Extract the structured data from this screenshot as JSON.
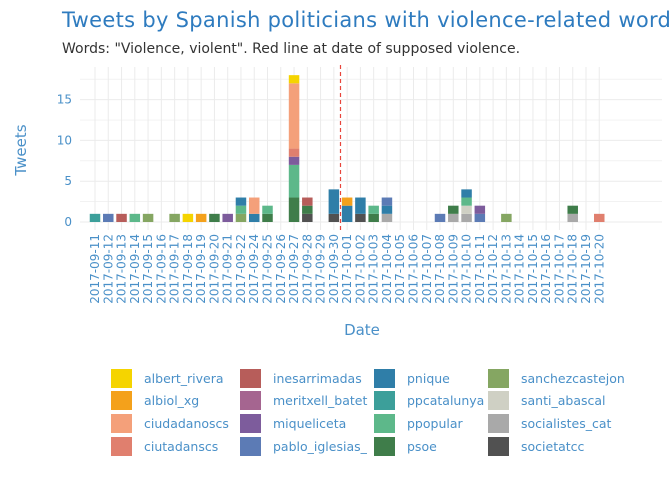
{
  "chart_data": {
    "type": "bar",
    "stacked": true,
    "title": "Tweets by Spanish politicians with violence-related words",
    "subtitle": "Words: \"Violence, violent\". Red line at date of supposed violence.",
    "xlabel": "Date",
    "ylabel": "Tweets",
    "ylim": [
      0,
      19
    ],
    "yticks": [
      0,
      5,
      10,
      15
    ],
    "grid": true,
    "legend_position": "bottom",
    "reference_line": {
      "date": "2017-10-01",
      "color": "#e8453c",
      "style": "dashed"
    },
    "categories": [
      "2017-09-11",
      "2017-09-12",
      "2017-09-13",
      "2017-09-14",
      "2017-09-15",
      "2017-09-16",
      "2017-09-17",
      "2017-09-18",
      "2017-09-19",
      "2017-09-20",
      "2017-09-21",
      "2017-09-22",
      "2017-09-24",
      "2017-09-25",
      "2017-09-26",
      "2017-09-27",
      "2017-09-28",
      "2017-09-29",
      "2017-09-30",
      "2017-10-01",
      "2017-10-02",
      "2017-10-03",
      "2017-10-04",
      "2017-10-05",
      "2017-10-06",
      "2017-10-07",
      "2017-10-08",
      "2017-10-09",
      "2017-10-10",
      "2017-10-11",
      "2017-10-12",
      "2017-10-13",
      "2017-10-14",
      "2017-10-15",
      "2017-10-16",
      "2017-10-17",
      "2017-10-18",
      "2017-10-19",
      "2017-10-20"
    ],
    "x_ticks_shown": [
      "2017-09-11",
      "2017-09-12",
      "2017-09-13",
      "2017-09-14",
      "2017-09-15",
      "2017-09-16",
      "2017-09-17",
      "2017-09-18",
      "2017-09-19",
      "2017-09-20",
      "2017-09-21",
      "2017-09-22",
      "2017-09-24",
      "2017-09-25",
      "2017-09-26",
      "2017-09-27",
      "2017-09-28",
      "2017-09-29",
      "2017-09-30",
      "2017-10-01",
      "2017-10-02",
      "2017-10-03",
      "2017-10-04",
      "2017-10-05",
      "2017-10-06",
      "2017-10-07",
      "2017-10-08",
      "2017-10-09",
      "2017-10-10",
      "2017-10-11",
      "2017-10-12",
      "2017-10-13",
      "2017-10-14",
      "2017-10-15",
      "2017-10-16",
      "2017-10-17",
      "2017-10-18",
      "2017-10-19",
      "2017-10-20"
    ],
    "x_ticks": [
      "2017-09-11",
      "2017-09-12",
      "2017-09-13",
      "2017-09-14",
      "2017-09-15",
      "2017-09-16",
      "2017-09-18",
      "2017-09-19",
      "2017-09-20",
      "2017-09-21",
      "2017-09-22",
      "2017-09-24",
      "2017-09-25",
      "2017-09-26",
      "2017-09-27",
      "2017-09-28",
      "2017-09-29",
      "2017-09-30",
      "2017-10-01",
      "2017-10-02",
      "2017-10-03",
      "2017-10-04",
      "2017-10-05",
      "2017-10-06",
      "2017-10-08",
      "2017-10-09",
      "2017-10-10",
      "2017-10-11",
      "2017-10-13",
      "2017-10-15",
      "2017-10-16",
      "2017-10-18",
      "2017-10-19",
      "2017-10-20"
    ],
    "bars": [
      {
        "date": "2017-09-11",
        "stack": [
          {
            "s": "ppcatalunya",
            "v": 1
          }
        ]
      },
      {
        "date": "2017-09-12",
        "stack": [
          {
            "s": "pablo_iglesias_",
            "v": 1
          }
        ]
      },
      {
        "date": "2017-09-13",
        "stack": [
          {
            "s": "inesarrimadas",
            "v": 1
          }
        ]
      },
      {
        "date": "2017-09-14",
        "stack": [
          {
            "s": "ppopular",
            "v": 1
          }
        ]
      },
      {
        "date": "2017-09-15",
        "stack": [
          {
            "s": "sanchezcastejon",
            "v": 1
          }
        ]
      },
      {
        "date": "2017-09-17",
        "stack": [
          {
            "s": "sanchezcastejon",
            "v": 1
          }
        ]
      },
      {
        "date": "2017-09-18",
        "stack": [
          {
            "s": "albert_rivera",
            "v": 1
          }
        ]
      },
      {
        "date": "2017-09-19",
        "stack": [
          {
            "s": "albiol_xg",
            "v": 1
          }
        ]
      },
      {
        "date": "2017-09-20",
        "stack": [
          {
            "s": "psoe",
            "v": 1
          }
        ]
      },
      {
        "date": "2017-09-21",
        "stack": [
          {
            "s": "miquelicetа",
            "v": 1
          }
        ]
      },
      {
        "date": "2017-09-22",
        "stack": [
          {
            "s": "sanchezcastejon",
            "v": 1
          },
          {
            "s": "ppopular",
            "v": 1
          },
          {
            "s": "pnique",
            "v": 1
          }
        ]
      },
      {
        "date": "2017-09-24",
        "stack": [
          {
            "s": "pnique",
            "v": 1
          },
          {
            "s": "ciudadanoscs",
            "v": 2
          }
        ]
      },
      {
        "date": "2017-09-25",
        "stack": [
          {
            "s": "psoe",
            "v": 1
          },
          {
            "s": "ppopular",
            "v": 1
          }
        ]
      },
      {
        "date": "2017-09-27",
        "stack": [
          {
            "s": "psoe",
            "v": 3
          },
          {
            "s": "ppopular",
            "v": 4
          },
          {
            "s": "miquelicetа",
            "v": 1
          },
          {
            "s": "ciutadanscs",
            "v": 1
          },
          {
            "s": "ciudadanoscs",
            "v": 8
          },
          {
            "s": "albert_rivera",
            "v": 1
          }
        ]
      },
      {
        "date": "2017-09-28",
        "stack": [
          {
            "s": "societatcc",
            "v": 1
          },
          {
            "s": "psoe",
            "v": 1
          },
          {
            "s": "inesarrimadas",
            "v": 1
          }
        ]
      },
      {
        "date": "2017-09-30",
        "stack": [
          {
            "s": "societatcc",
            "v": 1
          },
          {
            "s": "pnique",
            "v": 3
          }
        ]
      },
      {
        "date": "2017-10-01",
        "stack": [
          {
            "s": "pnique",
            "v": 2
          },
          {
            "s": "albiol_xg",
            "v": 1
          }
        ]
      },
      {
        "date": "2017-10-02",
        "stack": [
          {
            "s": "societatcc",
            "v": 1
          },
          {
            "s": "pnique",
            "v": 2
          }
        ]
      },
      {
        "date": "2017-10-03",
        "stack": [
          {
            "s": "psoe",
            "v": 1
          },
          {
            "s": "ppopular",
            "v": 1
          }
        ]
      },
      {
        "date": "2017-10-04",
        "stack": [
          {
            "s": "socialistes_cat",
            "v": 1
          },
          {
            "s": "pnique",
            "v": 1
          },
          {
            "s": "pablo_iglesias_",
            "v": 1
          }
        ]
      },
      {
        "date": "2017-10-08",
        "stack": [
          {
            "s": "pablo_iglesias_",
            "v": 1
          }
        ]
      },
      {
        "date": "2017-10-09",
        "stack": [
          {
            "s": "socialistes_cat",
            "v": 1
          },
          {
            "s": "psoe",
            "v": 1
          }
        ]
      },
      {
        "date": "2017-10-10",
        "stack": [
          {
            "s": "socialistes_cat",
            "v": 1
          },
          {
            "s": "santi_abascal",
            "v": 1
          },
          {
            "s": "ppopular",
            "v": 1
          },
          {
            "s": "pnique",
            "v": 1
          }
        ]
      },
      {
        "date": "2017-10-11",
        "stack": [
          {
            "s": "pablo_iglesias_",
            "v": 1
          },
          {
            "s": "miquelicetа",
            "v": 1
          }
        ]
      },
      {
        "date": "2017-10-13",
        "stack": [
          {
            "s": "sanchezcastejon",
            "v": 1
          }
        ]
      },
      {
        "date": "2017-10-18",
        "stack": [
          {
            "s": "socialistes_cat",
            "v": 1
          },
          {
            "s": "psoe",
            "v": 1
          }
        ]
      },
      {
        "date": "2017-10-20",
        "stack": [
          {
            "s": "ciutadanscs",
            "v": 1
          }
        ]
      }
    ],
    "series": [
      {
        "name": "albert_rivera",
        "color": "#f5d400"
      },
      {
        "name": "albiol_xg",
        "color": "#f4a11b"
      },
      {
        "name": "ciudadanoscs",
        "color": "#f4a07a"
      },
      {
        "name": "ciutadanscs",
        "color": "#e07f6e"
      },
      {
        "name": "inesarrimadas",
        "color": "#b75d5a"
      },
      {
        "name": "meritxell_batet",
        "color": "#a56590"
      },
      {
        "name": "miquelicetа",
        "color": "#7d5c9c"
      },
      {
        "name": "pablo_iglesias_",
        "color": "#5c7bb5"
      },
      {
        "name": "pnique",
        "color": "#2f7ea8"
      },
      {
        "name": "ppcatalunya",
        "color": "#3c9f9a"
      },
      {
        "name": "ppopular",
        "color": "#5db88a"
      },
      {
        "name": "psoe",
        "color": "#3f7d4a"
      },
      {
        "name": "sanchezcastejon",
        "color": "#85a662"
      },
      {
        "name": "santi_abascal",
        "color": "#cfd0c4"
      },
      {
        "name": "socialistes_cat",
        "color": "#a9a9a9"
      },
      {
        "name": "societatcc",
        "color": "#515151"
      }
    ]
  }
}
